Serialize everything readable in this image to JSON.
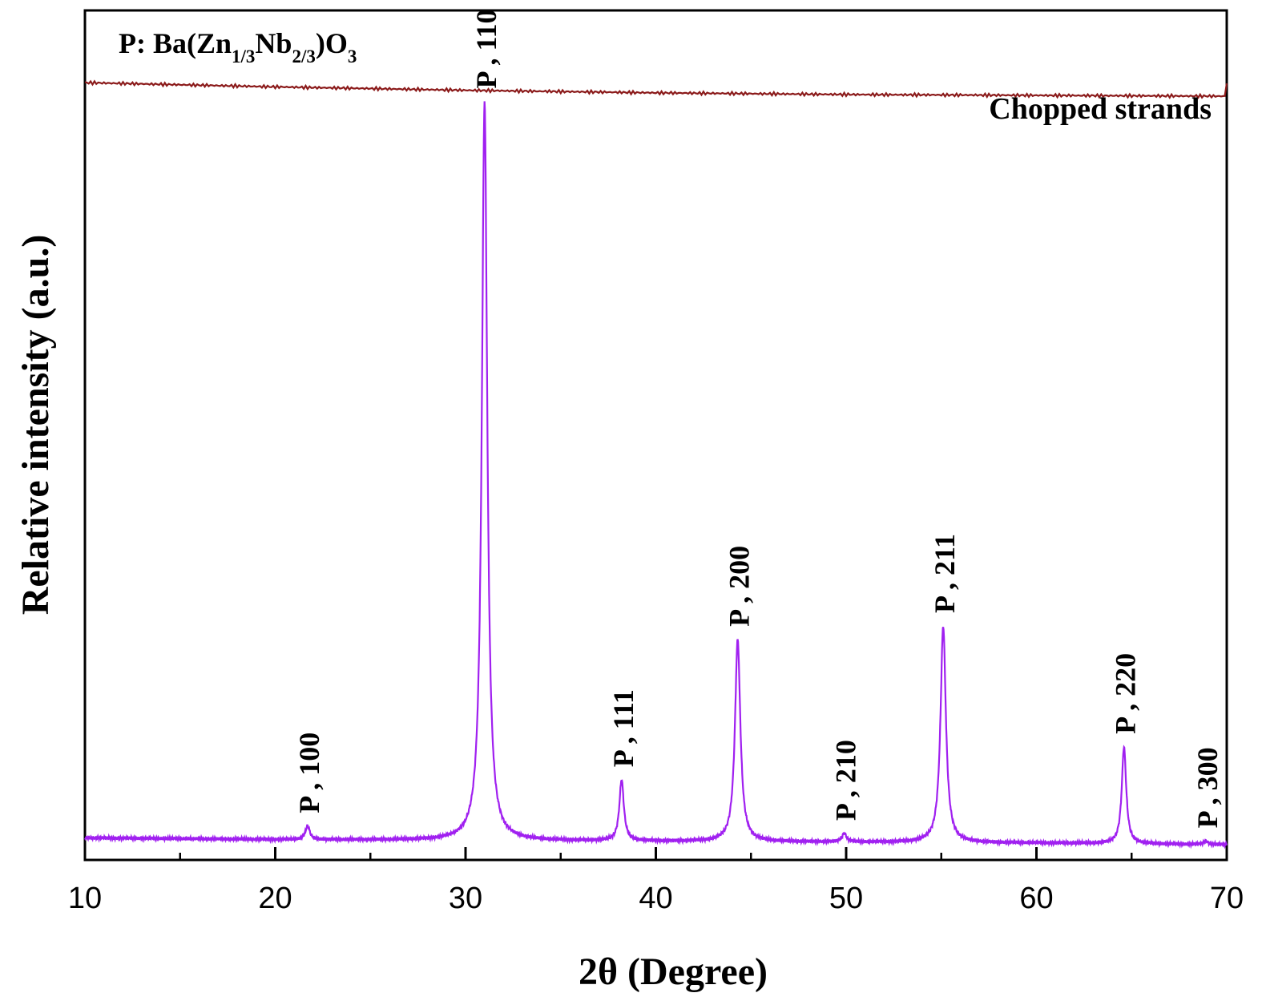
{
  "chart_data": {
    "type": "line",
    "title": "",
    "xlabel": "2θ (Degree)",
    "ylabel": "Relative intensity (a.u.)",
    "xlim": [
      10,
      70
    ],
    "ylim": [
      0,
      100
    ],
    "y_ticks_shown": false,
    "grid": false,
    "x_ticks": [
      "10",
      "20",
      "30",
      "40",
      "50",
      "60",
      "70"
    ],
    "annotation": {
      "prefix": "P: Ba(Zn",
      "sub1": "1/3",
      "mid": "Nb",
      "sub2": "2/3",
      "close": ")O",
      "sub3": "3"
    },
    "series": [
      {
        "name": "Chopped strands",
        "color": "#8b1a1a",
        "x": [
          10,
          20,
          30,
          40,
          50,
          60,
          70
        ],
        "y": [
          91.5,
          91.0,
          90.6,
          90.3,
          90.1,
          90.0,
          89.9
        ]
      },
      {
        "name": "",
        "color": "#a020f0",
        "baseline": [
          [
            10,
            2.6
          ],
          [
            20,
            2.4
          ],
          [
            30,
            2.3
          ],
          [
            40,
            2.2
          ],
          [
            50,
            2.1
          ],
          [
            60,
            2.0
          ],
          [
            70,
            1.8
          ]
        ],
        "peaks": [
          {
            "x": 21.7,
            "height": 1.6,
            "label": "P , 100"
          },
          {
            "x": 31.0,
            "height": 87.0,
            "label": "P , 110"
          },
          {
            "x": 38.2,
            "height": 7.2,
            "label": "P , 111"
          },
          {
            "x": 44.3,
            "height": 23.8,
            "label": "P , 200"
          },
          {
            "x": 49.9,
            "height": 1.0,
            "label": "P , 210"
          },
          {
            "x": 55.1,
            "height": 25.5,
            "label": "P , 211"
          },
          {
            "x": 64.6,
            "height": 11.4,
            "label": "P , 220"
          },
          {
            "x": 68.9,
            "height": 0.4,
            "label": "P , 300"
          }
        ]
      }
    ]
  }
}
